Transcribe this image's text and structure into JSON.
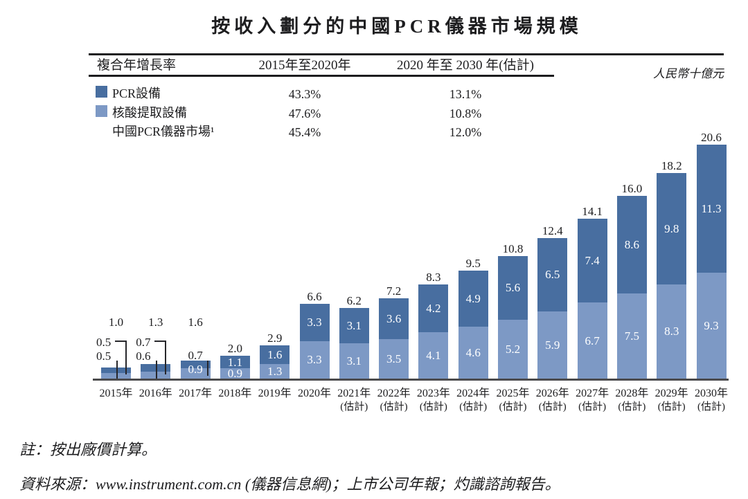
{
  "title": "按收入劃分的中國PCR儀器市場規模",
  "unit_label": "人民幣十億元",
  "cagr_table": {
    "col_label": "複合年增長率",
    "col_period1": "2015年至2020年",
    "col_period2": "2020 年至 2030 年(估計)",
    "rows": [
      {
        "label": "PCR設備",
        "swatch": "dark",
        "period1": "43.3%",
        "period2": "13.1%"
      },
      {
        "label": "核酸提取設備",
        "swatch": "light",
        "period1": "47.6%",
        "period2": "10.8%"
      },
      {
        "label": "中國PCR儀器市場¹",
        "swatch": "none",
        "period1": "45.4%",
        "period2": "12.0%"
      }
    ]
  },
  "chart_data": {
    "type": "bar",
    "stacked": true,
    "title": "按收入劃分的中國PCR儀器市場規模",
    "unit": "人民幣十億元",
    "grid": false,
    "categories": [
      "2015年",
      "2016年",
      "2017年",
      "2018年",
      "2019年",
      "2020年",
      "2021年",
      "2022年",
      "2023年",
      "2024年",
      "2025年",
      "2026年",
      "2027年",
      "2028年",
      "2029年",
      "2030年"
    ],
    "estimate_label": "(估計)",
    "estimated_from_index": 6,
    "series": [
      {
        "name": "PCR設備",
        "color": "#486ea0",
        "values": [
          0.5,
          0.7,
          0.7,
          1.1,
          1.6,
          3.3,
          3.1,
          3.6,
          4.2,
          4.9,
          5.6,
          6.5,
          7.4,
          8.6,
          9.8,
          11.3
        ]
      },
      {
        "name": "核酸提取設備",
        "color": "#7d99c5",
        "values": [
          0.5,
          0.6,
          0.9,
          0.9,
          1.3,
          3.3,
          3.1,
          3.5,
          4.1,
          4.6,
          5.2,
          5.9,
          6.7,
          7.5,
          8.3,
          9.3
        ]
      }
    ],
    "totals": [
      1.0,
      1.3,
      1.6,
      2.0,
      2.9,
      6.6,
      6.2,
      7.2,
      8.3,
      9.5,
      10.8,
      12.4,
      14.1,
      16.0,
      18.2,
      20.6
    ],
    "value_label_style": "segment values in white inside bars (2017–2030), totals in black above bars; 2015–2016 segment values shown left of bars with leader lines"
  },
  "notes": {
    "note": "註：按出廠價計算。",
    "source": "資料來源：www.instrument.com.cn (儀器信息網)；上市公司年報；灼識諮詢報告。"
  },
  "colors": {
    "pcr_equipment": "#486ea0",
    "nucleic_extraction": "#7d99c5",
    "axis": "#4b4b4d",
    "text": "#1d1d1f"
  }
}
